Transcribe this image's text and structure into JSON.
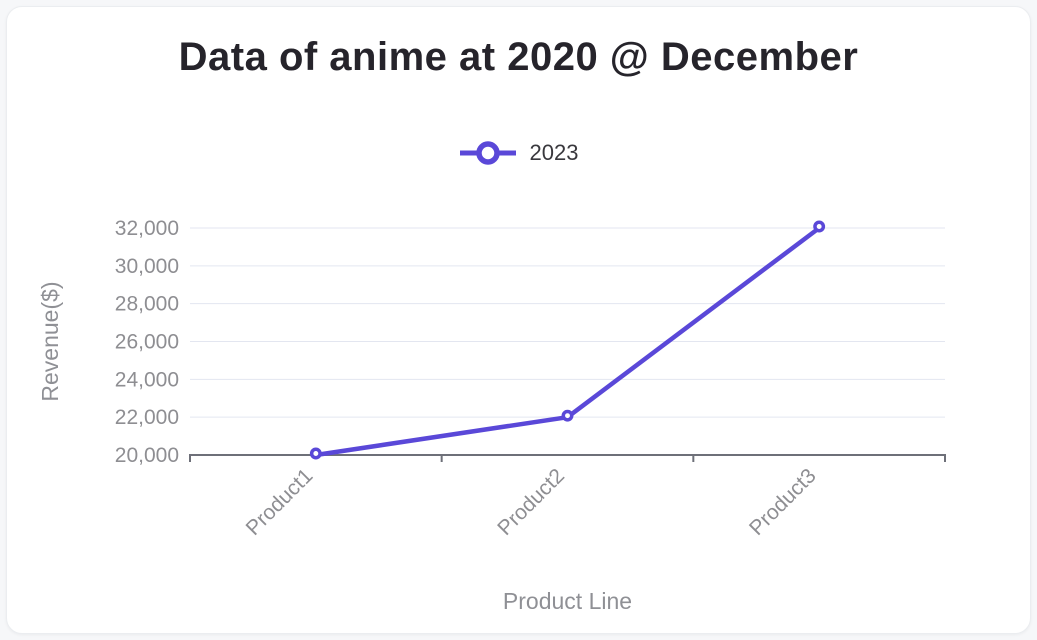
{
  "page": {
    "background_color": "#f6f7f9",
    "card_background": "#ffffff",
    "card_border_color": "#ebedf0"
  },
  "header": {
    "title": "Data of anime at 2020 @ December",
    "title_color": "#26242b"
  },
  "legend": {
    "position": "top-center",
    "items": [
      {
        "label": "2023",
        "color": "#5a48d8",
        "marker": "line-with-hollow-circle"
      }
    ],
    "text_color": "#39383d"
  },
  "chart_data": {
    "type": "line",
    "title": "Data of anime at 2020 @ December",
    "categories": [
      "Product1",
      "Product2",
      "Product3"
    ],
    "series": [
      {
        "name": "2023",
        "values": [
          20000,
          22000,
          32000
        ],
        "color": "#5a48d8",
        "marker": "hollow-circle"
      }
    ],
    "xlabel": "Product Line",
    "ylabel": "Revenue($)",
    "ylim": [
      20000,
      32000
    ],
    "ytick_step": 2000,
    "ytick_labels": [
      "20,000",
      "22,000",
      "24,000",
      "26,000",
      "28,000",
      "30,000",
      "32,000"
    ],
    "x_label_rotation": -45,
    "grid": true,
    "legend_position": "top-center",
    "grid_color": "#e3e6f0",
    "axis_color": "#6e7079",
    "tick_label_color": "#8e8e92",
    "axis_name_color": "#8f9095"
  }
}
